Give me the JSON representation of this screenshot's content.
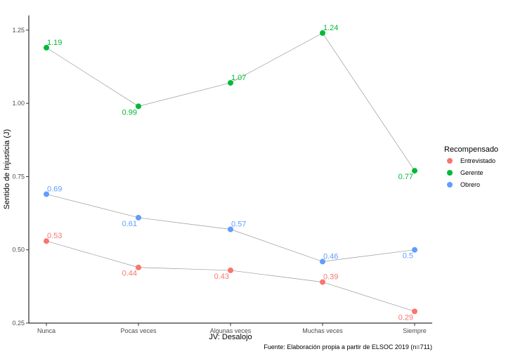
{
  "chart_data": {
    "type": "line",
    "categories": [
      "Nunca",
      "Pocas veces",
      "Algunas veces",
      "Muchas veces",
      "Siempre"
    ],
    "xlabel": "JV: Desalojo",
    "ylabel": "Sentido de Injusticia (J)",
    "ylim": [
      0.25,
      1.3
    ],
    "yticks": [
      0.25,
      0.5,
      0.75,
      1.0,
      1.25
    ],
    "ytick_labels": [
      "0.25",
      "0.50",
      "0.75",
      "1.00",
      "1.25"
    ],
    "grid": false,
    "legend": {
      "title": "Recompensado",
      "placement": "right"
    },
    "series": [
      {
        "name": "Entrevistado",
        "color": "#F8766D",
        "values": [
          0.53,
          0.44,
          0.43,
          0.39,
          0.29
        ],
        "labels": [
          "0.53",
          "0.44",
          "0.43",
          "0.39",
          "0.29"
        ]
      },
      {
        "name": "Gerente",
        "color": "#00BA38",
        "values": [
          1.19,
          0.99,
          1.07,
          1.24,
          0.77
        ],
        "labels": [
          "1.19",
          "0.99",
          "1.07",
          "1.24",
          "0.77"
        ]
      },
      {
        "name": "Obrero",
        "color": "#619CFF",
        "values": [
          0.69,
          0.61,
          0.57,
          0.46,
          0.5
        ],
        "labels": [
          "0.69",
          "0.61",
          "0.57",
          "0.46",
          "0.5"
        ]
      }
    ],
    "caption": "Fuente: Elaboración propia a partir de ELSOC 2019 (n=711)"
  }
}
